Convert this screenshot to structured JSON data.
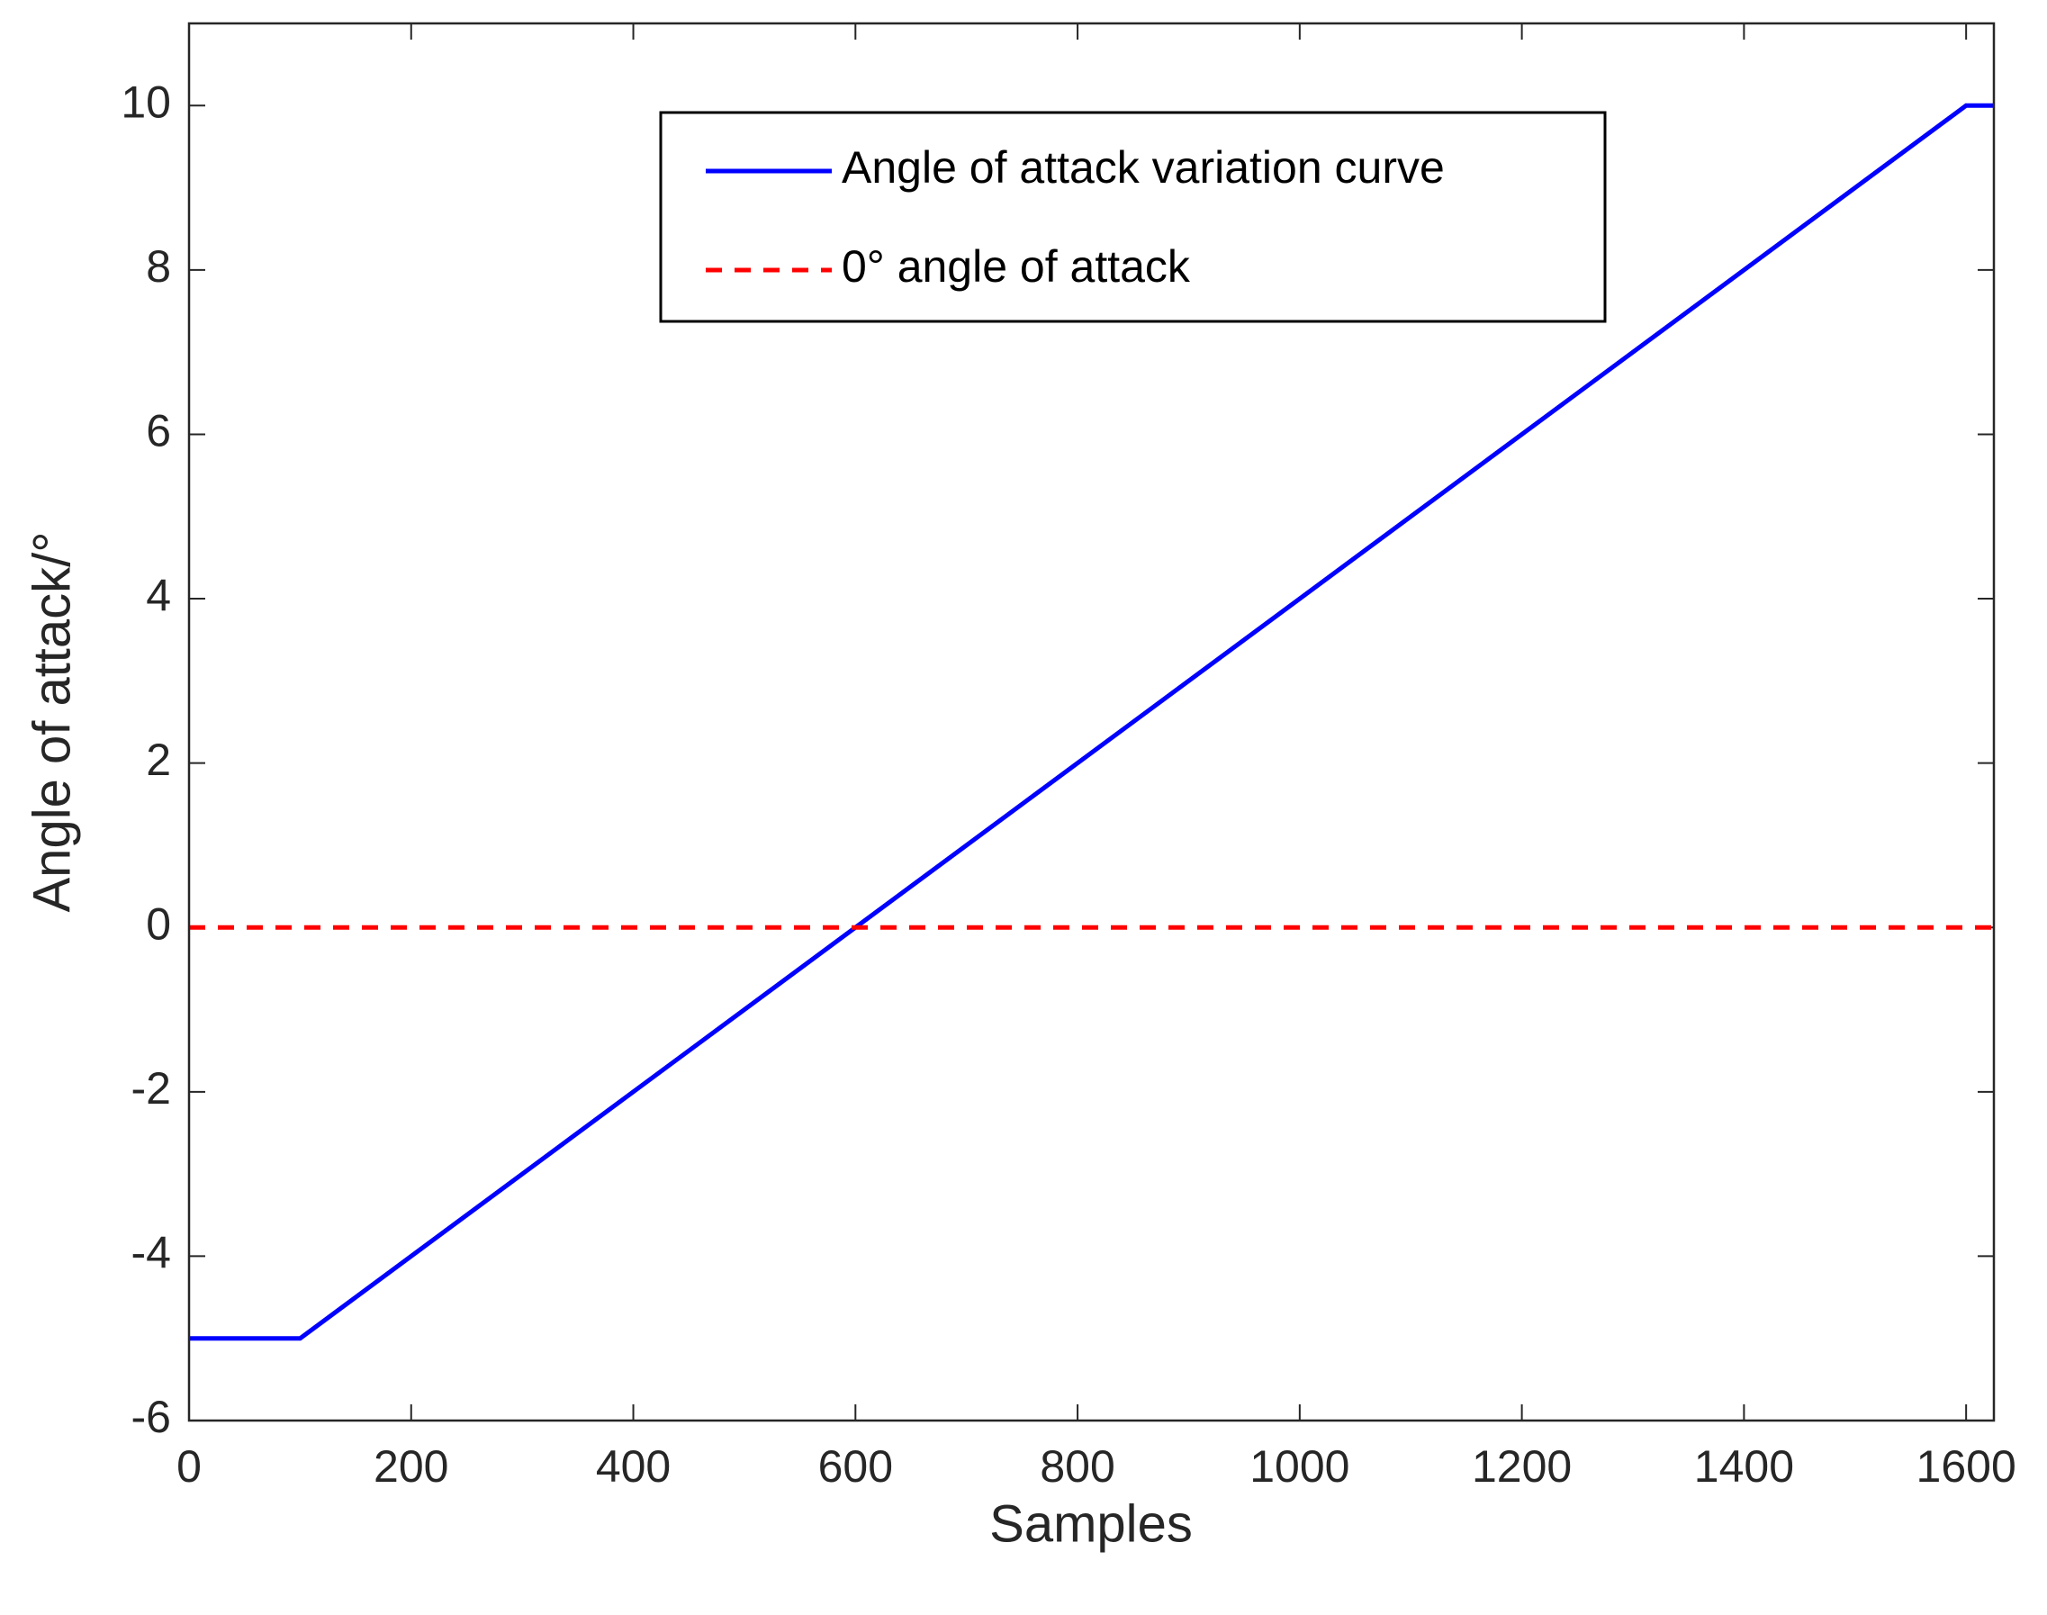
{
  "chart_data": {
    "type": "line",
    "xlabel": "Samples",
    "ylabel": "Angle of attack/°",
    "xlim": [
      0,
      1625
    ],
    "ylim": [
      -6,
      11
    ],
    "xticks": [
      0,
      200,
      400,
      600,
      800,
      1000,
      1200,
      1400,
      1600
    ],
    "yticks": [
      -6,
      -4,
      -2,
      0,
      2,
      4,
      6,
      8,
      10
    ],
    "series": [
      {
        "name": "Angle of attack variation curve",
        "color": "#0000ff",
        "style": "solid",
        "x": [
          0,
          100,
          1600,
          1625
        ],
        "values": [
          -5,
          -5,
          10,
          10
        ]
      },
      {
        "name": "0° angle of attack",
        "color": "#ff0000",
        "style": "dashed",
        "x": [
          0,
          1625
        ],
        "values": [
          0,
          0
        ]
      }
    ],
    "legend": "top"
  }
}
